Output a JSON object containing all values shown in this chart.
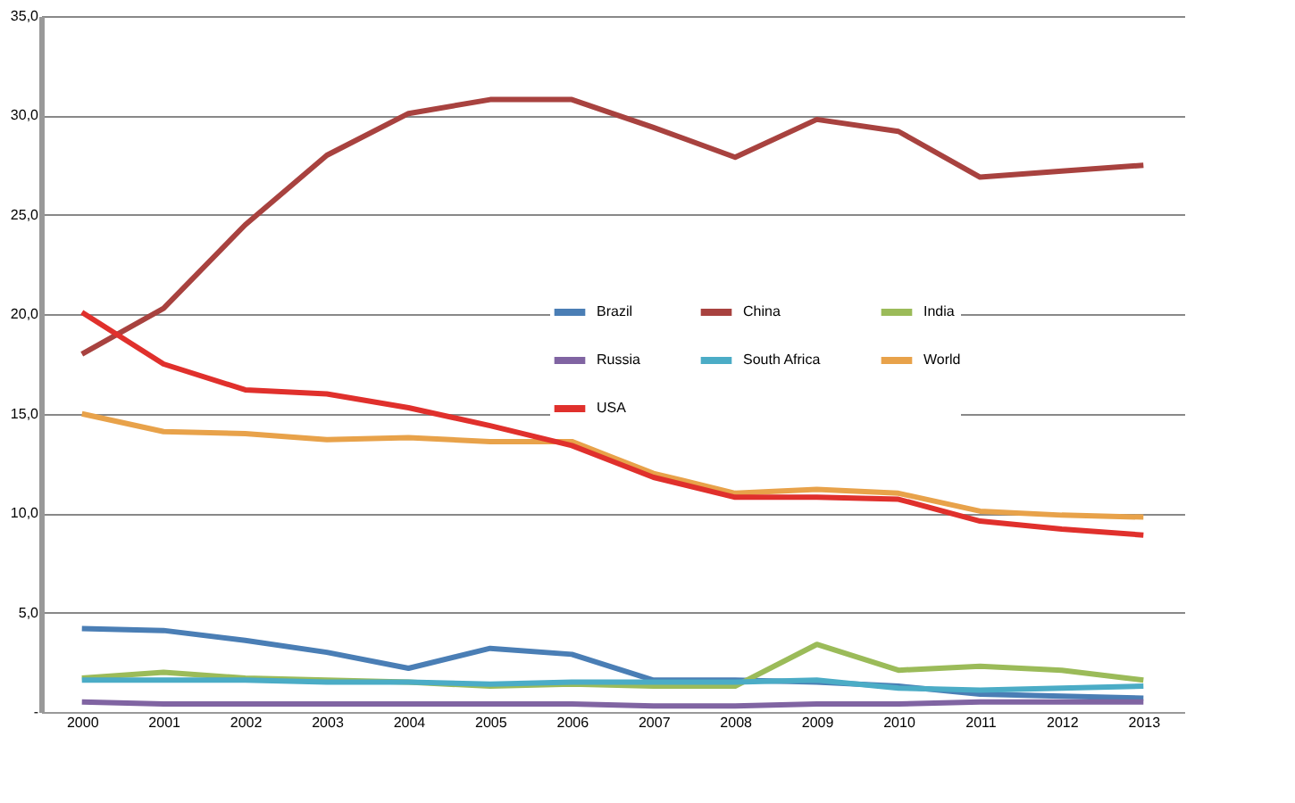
{
  "chart_data": {
    "type": "line",
    "categories": [
      "2000",
      "2001",
      "2002",
      "2003",
      "2004",
      "2005",
      "2006",
      "2007",
      "2008",
      "2009",
      "2010",
      "2011",
      "2012",
      "2013"
    ],
    "series": [
      {
        "name": "Brazil",
        "color": "#4a7eb5",
        "values": [
          4.2,
          4.1,
          3.6,
          3.0,
          2.2,
          3.2,
          2.9,
          1.6,
          1.6,
          1.5,
          1.3,
          0.9,
          0.8,
          0.7
        ]
      },
      {
        "name": "China",
        "color": "#a8423f",
        "values": [
          18.0,
          20.3,
          24.5,
          28.0,
          30.1,
          30.8,
          30.8,
          29.4,
          27.9,
          29.8,
          29.2,
          26.9,
          27.2,
          27.5
        ]
      },
      {
        "name": "India",
        "color": "#9bbb59",
        "values": [
          1.7,
          2.0,
          1.7,
          1.6,
          1.5,
          1.3,
          1.4,
          1.3,
          1.3,
          3.4,
          2.1,
          2.3,
          2.1,
          1.6
        ]
      },
      {
        "name": "Russia",
        "color": "#8064a2",
        "values": [
          0.5,
          0.4,
          0.4,
          0.4,
          0.4,
          0.4,
          0.4,
          0.3,
          0.3,
          0.4,
          0.4,
          0.5,
          0.5,
          0.5
        ]
      },
      {
        "name": "South Africa",
        "color": "#4bacc6",
        "values": [
          1.6,
          1.6,
          1.6,
          1.5,
          1.5,
          1.4,
          1.5,
          1.5,
          1.5,
          1.6,
          1.2,
          1.1,
          1.2,
          1.3
        ]
      },
      {
        "name": "World",
        "color": "#e8a24a",
        "values": [
          15.0,
          14.1,
          14.0,
          13.7,
          13.8,
          13.6,
          13.6,
          12.0,
          11.0,
          11.2,
          11.0,
          10.1,
          9.9,
          9.8
        ]
      },
      {
        "name": "USA",
        "color": "#e0302c",
        "values": [
          20.1,
          17.5,
          16.2,
          16.0,
          15.3,
          14.4,
          13.4,
          11.8,
          10.8,
          10.8,
          10.7,
          9.6,
          9.2,
          8.9
        ]
      }
    ],
    "ylim": [
      0,
      35
    ],
    "yticks": [
      {
        "value": 0,
        "label": "-"
      },
      {
        "value": 5,
        "label": "5,0"
      },
      {
        "value": 10,
        "label": "10,0"
      },
      {
        "value": 15,
        "label": "15,0"
      },
      {
        "value": 20,
        "label": "20,0"
      },
      {
        "value": 25,
        "label": "25,0"
      },
      {
        "value": 30,
        "label": "30,0"
      },
      {
        "value": 35,
        "label": "35,0"
      }
    ],
    "grid": "y",
    "legend": "center",
    "marker": "none",
    "line_style": "solid"
  }
}
